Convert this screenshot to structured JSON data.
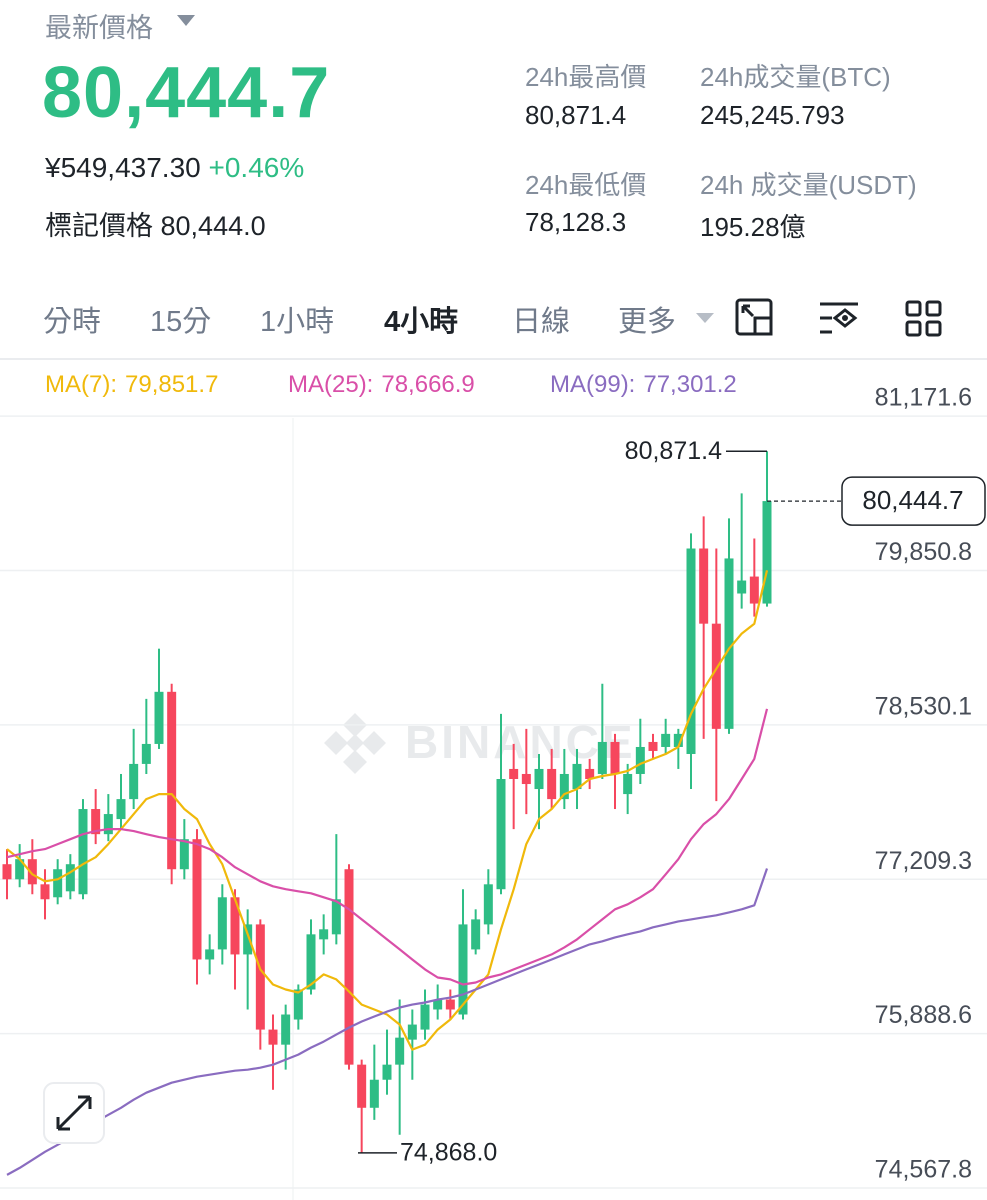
{
  "header": {
    "label": "最新價格",
    "price": "80,444.7",
    "cny": "¥549,437.30",
    "change": "+0.46%",
    "mark_label": "標記價格",
    "mark_price": "80,444.0",
    "stats": [
      {
        "label": "24h最高價",
        "value": "80,871.4"
      },
      {
        "label": "24h成交量(BTC)",
        "value": "245,245.793"
      },
      {
        "label": "24h最低價",
        "value": "78,128.3"
      },
      {
        "label": "24h 成交量(USDT)",
        "value": "195.28億"
      }
    ]
  },
  "tabs": [
    "分時",
    "15分",
    "1小時",
    "4小時",
    "日線",
    "更多"
  ],
  "watermark": "BINANCE",
  "chart_data": {
    "type": "candlestick",
    "up_color": "#2ebd85",
    "down_color": "#f6465d",
    "ylim": [
      74465,
      81669
    ],
    "yticks": [
      {
        "value": 81171.6,
        "label": "81,171.6"
      },
      {
        "value": 79850.8,
        "label": "79,850.8"
      },
      {
        "value": 78530.1,
        "label": "78,530.1"
      },
      {
        "value": 77209.3,
        "label": "77,209.3"
      },
      {
        "value": 75888.6,
        "label": "75,888.6"
      },
      {
        "value": 74567.8,
        "label": "74,567.8"
      }
    ],
    "grid": true,
    "open": [
      77338,
      77209,
      77381,
      77166,
      77055,
      77106,
      77081,
      77810,
      77595,
      77724,
      77895,
      78196,
      78367,
      78813,
      77295,
      77552,
      76523,
      76609,
      77055,
      76566,
      76823,
      75923,
      75794,
      76009,
      76266,
      76695,
      76738,
      77295,
      75623,
      75254,
      75494,
      75623,
      75837,
      75923,
      76095,
      76180,
      76052,
      76609,
      76823,
      77124,
      78153,
      78110,
      77981,
      78153,
      77895,
      77981,
      78153,
      78110,
      78384,
      77938,
      78110,
      78384,
      78341,
      78341,
      78281,
      80039,
      79396,
      78496,
      79654,
      79799,
      79568
    ],
    "high": [
      77467,
      77510,
      77552,
      77295,
      77381,
      77424,
      77895,
      77981,
      77938,
      78110,
      78496,
      78753,
      79182,
      78882,
      77724,
      77638,
      76738,
      77166,
      77124,
      76952,
      76866,
      76052,
      76137,
      76309,
      76866,
      76909,
      77595,
      77338,
      75666,
      75794,
      75923,
      76180,
      76095,
      76266,
      76309,
      76266,
      77124,
      76952,
      77295,
      78624,
      78367,
      78496,
      78281,
      78324,
      78324,
      78324,
      78239,
      78882,
      78453,
      78196,
      78582,
      78453,
      78582,
      78496,
      80168,
      80314,
      80039,
      80297,
      80511,
      80125,
      80871.4
    ],
    "low": [
      77038,
      77141,
      77081,
      76866,
      76995,
      77038,
      77038,
      77510,
      77535,
      77638,
      77810,
      78110,
      78324,
      77166,
      77209,
      76309,
      76395,
      76480,
      76266,
      76095,
      75752,
      75408,
      75580,
      75923,
      76223,
      76566,
      76652,
      75580,
      74868,
      75151,
      75366,
      75023,
      75494,
      75837,
      76009,
      76009,
      76009,
      76566,
      76738,
      77081,
      77638,
      77767,
      77638,
      77810,
      77810,
      77810,
      77981,
      78067,
      77810,
      77767,
      78024,
      78239,
      78281,
      78153,
      77981,
      78410,
      77878,
      78453,
      79525,
      79456,
      79542
    ],
    "close": [
      77209,
      77381,
      77166,
      77038,
      77295,
      77338,
      77810,
      77595,
      77767,
      77895,
      78196,
      78367,
      78813,
      77295,
      77552,
      76523,
      76609,
      77055,
      76566,
      76823,
      75923,
      75794,
      76052,
      76266,
      76738,
      76781,
      77038,
      75623,
      75254,
      75494,
      75623,
      75854,
      75966,
      76137,
      76180,
      76095,
      76823,
      76866,
      77166,
      78067,
      78067,
      78024,
      78153,
      77895,
      78110,
      78196,
      78067,
      78384,
      78110,
      78110,
      78341,
      78307,
      78453,
      78453,
      80039,
      79396,
      78496,
      79954,
      79765,
      79568,
      80444.7
    ],
    "series": [
      {
        "name": "MA(7):",
        "value_label": "79,851.7",
        "color": "#f0b90b",
        "values": [
          77467,
          77381,
          77252,
          77192,
          77209,
          77269,
          77338,
          77398,
          77510,
          77638,
          77767,
          77895,
          77938,
          77938,
          77810,
          77724,
          77510,
          77338,
          77038,
          76738,
          76438,
          76309,
          76266,
          76240,
          76309,
          76395,
          76352,
          76249,
          76137,
          76095,
          76052,
          75966,
          75752,
          75794,
          75923,
          76009,
          76137,
          76266,
          76395,
          76781,
          77124,
          77510,
          77724,
          77810,
          77938,
          77981,
          78067,
          78093,
          78110,
          78136,
          78196,
          78239,
          78281,
          78341,
          78624,
          78839,
          79010,
          79182,
          79311,
          79396,
          79851.7
        ]
      },
      {
        "name": "MA(25):",
        "value_label": "78,666.9",
        "color": "#d94fa8",
        "values": [
          77398,
          77424,
          77449,
          77467,
          77510,
          77552,
          77595,
          77621,
          77638,
          77638,
          77621,
          77595,
          77570,
          77552,
          77535,
          77510,
          77467,
          77398,
          77312,
          77252,
          77192,
          77149,
          77124,
          77106,
          77089,
          77055,
          77021,
          76952,
          76866,
          76781,
          76695,
          76609,
          76523,
          76438,
          76369,
          76352,
          76309,
          76326,
          76369,
          76395,
          76438,
          76480,
          76523,
          76566,
          76626,
          76695,
          76781,
          76866,
          76952,
          76995,
          77055,
          77124,
          77252,
          77381,
          77552,
          77681,
          77767,
          77895,
          78067,
          78239,
          78666.9
        ]
      },
      {
        "name": "MA(99):",
        "value_label": "77,301.2",
        "color": "#8a6cc0",
        "values": [
          74680,
          74740,
          74808,
          74877,
          74937,
          74997,
          75065,
          75134,
          75194,
          75254,
          75323,
          75383,
          75426,
          75469,
          75494,
          75520,
          75537,
          75554,
          75571,
          75580,
          75597,
          75623,
          75666,
          75709,
          75769,
          75820,
          75880,
          75940,
          75992,
          76035,
          76077,
          76112,
          76137,
          76155,
          76180,
          76197,
          76223,
          76266,
          76309,
          76352,
          76395,
          76438,
          76480,
          76523,
          76566,
          76609,
          76652,
          76678,
          76712,
          76738,
          76763,
          76798,
          76823,
          76849,
          76866,
          76884,
          76901,
          76926,
          76952,
          76986,
          77301.2
        ]
      }
    ],
    "current_price": {
      "value": 80444.7,
      "label": "80,444.7"
    },
    "high_marker": {
      "value": 80871.4,
      "label": "80,871.4"
    },
    "low_marker": {
      "value": 74868,
      "label": "74,868.0"
    }
  }
}
